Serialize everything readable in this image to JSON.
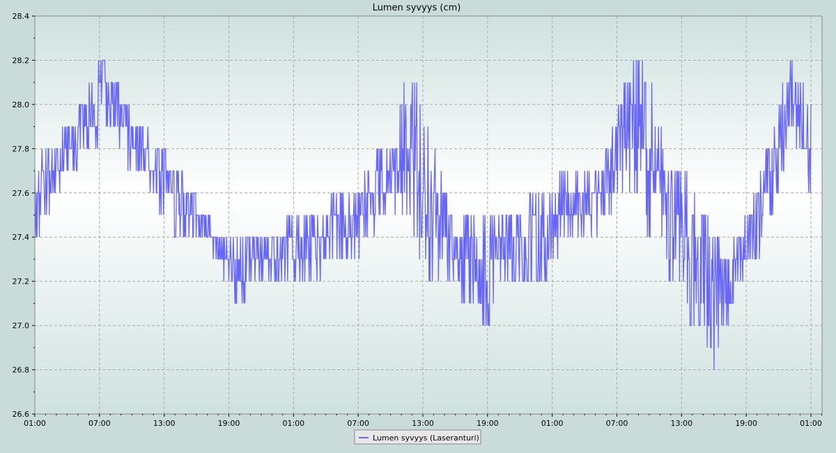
{
  "chart_data": {
    "type": "line",
    "title": "Lumen syvyys (cm)",
    "xlabel": "",
    "ylabel": "",
    "ylim": [
      26.6,
      28.4
    ],
    "yticks": [
      26.6,
      26.8,
      27.0,
      27.2,
      27.4,
      27.6,
      27.8,
      28.0,
      28.2,
      28.4
    ],
    "xlim_hours": [
      0,
      72
    ],
    "xticks": [
      {
        "hour": 0,
        "label": "01:00"
      },
      {
        "hour": 6,
        "label": "07:00"
      },
      {
        "hour": 12,
        "label": "13:00"
      },
      {
        "hour": 18,
        "label": "19:00"
      },
      {
        "hour": 24,
        "label": "01:00"
      },
      {
        "hour": 30,
        "label": "07:00"
      },
      {
        "hour": 36,
        "label": "13:00"
      },
      {
        "hour": 42,
        "label": "19:00"
      },
      {
        "hour": 48,
        "label": "01:00"
      },
      {
        "hour": 54,
        "label": "07:00"
      },
      {
        "hour": 60,
        "label": "13:00"
      },
      {
        "hour": 66,
        "label": "19:00"
      },
      {
        "hour": 72,
        "label": "01:00"
      }
    ],
    "grid": true,
    "legend_position": "bottom-center",
    "series": [
      {
        "name": "Lumen syvyys (Laseranturi)",
        "color": "#6666ff",
        "hours": [
          0,
          1,
          2,
          3,
          4,
          5,
          6,
          7,
          8,
          9,
          10,
          11,
          12,
          13,
          14,
          15,
          16,
          17,
          18,
          19,
          20,
          21,
          22,
          23,
          24,
          25,
          26,
          27,
          28,
          29,
          30,
          31,
          32,
          33,
          34,
          35,
          36,
          37,
          38,
          39,
          40,
          41,
          42,
          43,
          44,
          45,
          46,
          47,
          48,
          49,
          50,
          51,
          52,
          53,
          54,
          55,
          56,
          57,
          58,
          59,
          60,
          61,
          62,
          63,
          64,
          65,
          66,
          67,
          68,
          69,
          70,
          71,
          72
        ],
        "min": [
          27.4,
          27.5,
          27.6,
          27.7,
          27.7,
          27.8,
          27.8,
          27.9,
          27.8,
          27.7,
          27.7,
          27.6,
          27.5,
          27.4,
          27.4,
          27.4,
          27.4,
          27.3,
          27.2,
          27.1,
          27.2,
          27.2,
          27.2,
          27.2,
          27.2,
          27.2,
          27.2,
          27.3,
          27.3,
          27.3,
          27.3,
          27.4,
          27.5,
          27.5,
          27.5,
          27.5,
          27.2,
          27.2,
          27.2,
          27.2,
          27.1,
          27.1,
          27.0,
          27.2,
          27.2,
          27.2,
          27.2,
          27.2,
          27.3,
          27.4,
          27.4,
          27.4,
          27.4,
          27.5,
          27.6,
          27.6,
          27.6,
          27.4,
          27.4,
          27.2,
          27.2,
          27.0,
          27.0,
          26.8,
          27.0,
          27.1,
          27.2,
          27.3,
          27.5,
          27.6,
          27.9,
          27.8,
          27.6
        ],
        "max": [
          27.7,
          27.8,
          27.9,
          27.9,
          28.0,
          28.1,
          28.2,
          28.1,
          28.1,
          28.0,
          27.9,
          27.8,
          27.8,
          27.7,
          27.7,
          27.6,
          27.5,
          27.4,
          27.4,
          27.4,
          27.4,
          27.4,
          27.4,
          27.5,
          27.5,
          27.5,
          27.5,
          27.5,
          27.6,
          27.6,
          27.6,
          27.7,
          27.8,
          27.8,
          28.0,
          28.2,
          27.9,
          27.8,
          27.6,
          27.5,
          27.5,
          27.5,
          27.5,
          27.5,
          27.5,
          27.5,
          27.6,
          27.6,
          27.6,
          27.7,
          27.7,
          27.7,
          27.7,
          27.8,
          28.0,
          28.1,
          28.2,
          28.1,
          27.9,
          27.7,
          27.7,
          27.6,
          27.5,
          27.4,
          27.3,
          27.4,
          27.5,
          27.6,
          27.8,
          28.0,
          28.2,
          28.1,
          28.0
        ]
      }
    ]
  }
}
